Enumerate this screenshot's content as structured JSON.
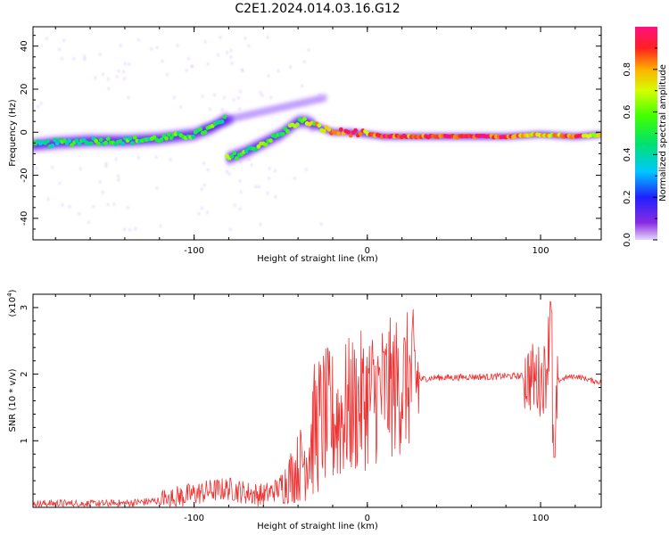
{
  "title": "C2E1.2024.014.03.16.G12",
  "chart_data": [
    {
      "type": "heatmap",
      "xlabel": "Height of straight line (km)",
      "ylabel": "Frequency (Hz)",
      "xlim": [
        -193,
        135
      ],
      "ylim": [
        -50,
        49
      ],
      "xticks": [
        -100,
        0,
        100
      ],
      "xtick_labels": [
        "-100",
        "0",
        "100"
      ],
      "yticks": [
        -40,
        -20,
        0,
        20,
        40
      ],
      "ytick_labels": [
        "-40",
        "-20",
        "0",
        "20",
        "40"
      ],
      "colorbar": {
        "label": "Normalized spectral amplitude",
        "range": [
          0,
          1
        ],
        "ticks": [
          0.0,
          0.2,
          0.4,
          0.6,
          0.8
        ],
        "tick_labels": [
          "0.0",
          "0.2",
          "0.4",
          "0.6",
          "0.8"
        ]
      },
      "ridge": [
        {
          "x": -193,
          "y": -6,
          "amp": 0.4
        },
        {
          "x": -180,
          "y": -5,
          "amp": 0.45
        },
        {
          "x": -160,
          "y": -4,
          "amp": 0.5
        },
        {
          "x": -140,
          "y": -4,
          "amp": 0.5
        },
        {
          "x": -120,
          "y": -3,
          "amp": 0.5
        },
        {
          "x": -100,
          "y": -1,
          "amp": 0.55
        },
        {
          "x": -90,
          "y": 2,
          "amp": 0.55
        },
        {
          "x": -82,
          "y": 6,
          "amp": 0.5
        },
        {
          "x": -80,
          "y": -12,
          "amp": 0.6
        },
        {
          "x": -70,
          "y": -9,
          "amp": 0.55
        },
        {
          "x": -60,
          "y": -5,
          "amp": 0.55
        },
        {
          "x": -50,
          "y": -1,
          "amp": 0.55
        },
        {
          "x": -40,
          "y": 5,
          "amp": 0.6
        },
        {
          "x": -35,
          "y": 5,
          "amp": 0.6
        },
        {
          "x": -30,
          "y": 3,
          "amp": 0.7
        },
        {
          "x": -20,
          "y": 0,
          "amp": 0.85
        },
        {
          "x": -10,
          "y": 0,
          "amp": 0.9
        },
        {
          "x": 0,
          "y": -1,
          "amp": 0.8
        },
        {
          "x": 10,
          "y": -2,
          "amp": 0.9
        },
        {
          "x": 20,
          "y": -2,
          "amp": 0.85
        },
        {
          "x": 40,
          "y": -2,
          "amp": 0.9
        },
        {
          "x": 60,
          "y": -2,
          "amp": 0.95
        },
        {
          "x": 80,
          "y": -2,
          "amp": 0.9
        },
        {
          "x": 100,
          "y": -1,
          "amp": 0.7
        },
        {
          "x": 120,
          "y": -2,
          "amp": 0.9
        },
        {
          "x": 135,
          "y": -1,
          "amp": 0.7
        }
      ]
    },
    {
      "type": "line",
      "xlabel": "Height of straight line (km)",
      "ylabel": "SNR (10 * v/v)",
      "yscale_label": "(x10",
      "yscale_exp": "4",
      "yscale_close": ")",
      "xlim": [
        -193,
        135
      ],
      "ylim": [
        0,
        3.2
      ],
      "xticks": [
        -100,
        0,
        100
      ],
      "xtick_labels": [
        "-100",
        "0",
        "100"
      ],
      "yticks": [
        1,
        2,
        3
      ],
      "ytick_labels": [
        "1",
        "2",
        "3"
      ],
      "color": "#ee3333",
      "series": [
        {
          "x": [
            -193,
            -180,
            -160,
            -140,
            -120,
            -100,
            -90,
            -80,
            -70,
            -60,
            -50,
            -45,
            -40,
            -35,
            -30,
            -25,
            -20,
            -15,
            -10,
            -5,
            0,
            5,
            10,
            15,
            20,
            25,
            30,
            40,
            50,
            60,
            70,
            80,
            90,
            95,
            100,
            103,
            105,
            106,
            107,
            108,
            110,
            115,
            120,
            125,
            130,
            135
          ],
          "y": [
            0.05,
            0.06,
            0.05,
            0.06,
            0.1,
            0.2,
            0.25,
            0.28,
            0.22,
            0.18,
            0.3,
            0.45,
            0.6,
            0.8,
            1.2,
            1.35,
            1.3,
            1.4,
            1.5,
            1.55,
            1.65,
            1.7,
            1.75,
            1.8,
            1.85,
            1.9,
            1.92,
            1.95,
            1.95,
            1.96,
            1.96,
            1.97,
            1.97,
            1.95,
            1.9,
            2.0,
            2.6,
            3.2,
            1.2,
            0.75,
            1.9,
            1.95,
            1.97,
            1.94,
            1.9,
            1.88
          ]
        }
      ]
    }
  ]
}
